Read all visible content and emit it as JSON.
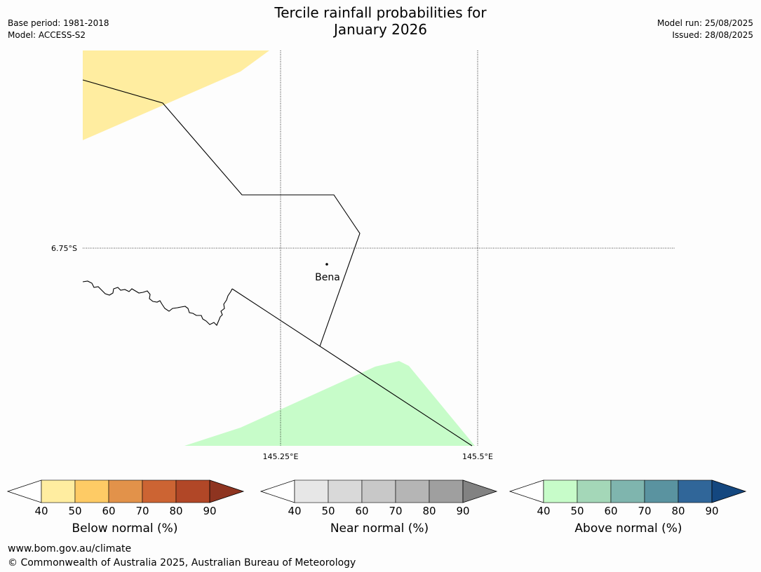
{
  "header": {
    "title_line1": "Tercile rainfall probabilities for",
    "title_line2": "January 2026",
    "base_period": "Base period: 1981-2018",
    "model": "Model: ACCESS-S2",
    "model_run": "Model run: 25/08/2025",
    "issued": "Issued: 28/08/2025"
  },
  "map": {
    "lat_label": "6.75°S",
    "lon_labels": [
      "145.25°E",
      "145.5°E"
    ],
    "place_label": "Bena",
    "colors": {
      "below_fill": "#ffeda0",
      "above_fill": "#c7fcc9"
    }
  },
  "legends": [
    {
      "title": "Below normal (%)",
      "ticks": [
        "40",
        "50",
        "60",
        "70",
        "80",
        "90"
      ],
      "colors": [
        "#ffeda0",
        "#fecb65",
        "#e2924a",
        "#cc6433",
        "#b14727",
        "#8e3420"
      ]
    },
    {
      "title": "Near normal (%)",
      "ticks": [
        "40",
        "50",
        "60",
        "70",
        "80",
        "90"
      ],
      "colors": [
        "#e7e7e7",
        "#d9d9d9",
        "#c8c8c8",
        "#b5b5b5",
        "#9f9f9f",
        "#828282"
      ]
    },
    {
      "title": "Above normal (%)",
      "ticks": [
        "40",
        "50",
        "60",
        "70",
        "80",
        "90"
      ],
      "colors": [
        "#c7fcc9",
        "#a4d7b8",
        "#7fb5ae",
        "#5a93a0",
        "#306699",
        "#14477f"
      ]
    }
  ],
  "footer": {
    "url": "www.bom.gov.au/climate",
    "copyright": "© Commonwealth of Australia 2025, Australian Bureau of Meteorology"
  }
}
